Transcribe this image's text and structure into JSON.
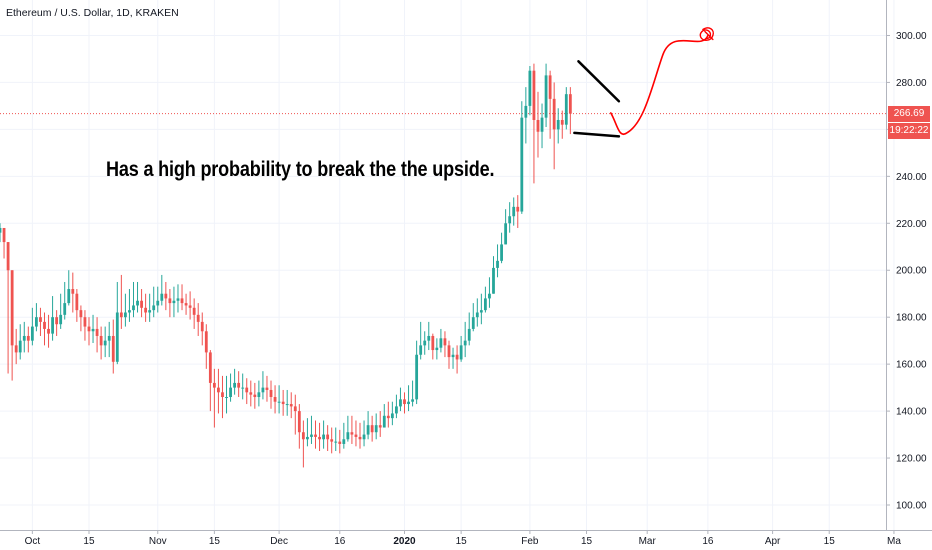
{
  "header": {
    "symbol_title": "Ethereum / U.S. Dollar, 1D, KRAKEN"
  },
  "annotation": {
    "text": "Has a high probability to break the the upside."
  },
  "price_axis": {
    "last_price_label": "266.69",
    "countdown_label": "19:22:22",
    "last_price": 266.69
  },
  "colors": {
    "up": "#26a69a",
    "down": "#ef5350",
    "last_price": "#ef5350",
    "drawing": "#000000",
    "arrow": "#ff0000"
  },
  "chart_data": {
    "type": "candlestick",
    "ylim": [
      100,
      310
    ],
    "yticks": [
      100,
      120,
      140,
      160,
      180,
      200,
      220,
      240,
      260,
      280,
      300
    ],
    "ytick_labels": [
      "100.00",
      "120.00",
      "140.00",
      "160.00",
      "180.00",
      "200.00",
      "220.00",
      "240.00",
      "260.00",
      "280.00",
      "300.00"
    ],
    "x_start": "2019-09-23",
    "xticks": [
      {
        "date": "2019-10-01",
        "label": "Oct"
      },
      {
        "date": "2019-10-15",
        "label": "15"
      },
      {
        "date": "2019-11-01",
        "label": "Nov"
      },
      {
        "date": "2019-11-15",
        "label": "15"
      },
      {
        "date": "2019-12-01",
        "label": "Dec"
      },
      {
        "date": "2019-12-16",
        "label": "16"
      },
      {
        "date": "2020-01-01",
        "label": "2020"
      },
      {
        "date": "2020-01-15",
        "label": "15"
      },
      {
        "date": "2020-02-01",
        "label": "Feb"
      },
      {
        "date": "2020-02-15",
        "label": "15"
      },
      {
        "date": "2020-03-01",
        "label": "Mar"
      },
      {
        "date": "2020-03-16",
        "label": "16"
      },
      {
        "date": "2020-04-01",
        "label": "Apr"
      },
      {
        "date": "2020-04-15",
        "label": "15"
      },
      {
        "date": "2020-05-01",
        "label": "Ma"
      }
    ],
    "closes": [
      218,
      212,
      200,
      168,
      165,
      170,
      172,
      170,
      176,
      180,
      178,
      175,
      173,
      180,
      177,
      181,
      186,
      192,
      190,
      183,
      180,
      176,
      174,
      175,
      172,
      168,
      170,
      172,
      161,
      182,
      180,
      182,
      183,
      185,
      187,
      184,
      182,
      183,
      185,
      187,
      190,
      188,
      186,
      187,
      188,
      186,
      185,
      184,
      181,
      178,
      174,
      165,
      152,
      150,
      148,
      146,
      146,
      150,
      152,
      150,
      150,
      148,
      147,
      146,
      148,
      150,
      149,
      146,
      144,
      144,
      143,
      143,
      142,
      140,
      131,
      128,
      129,
      130,
      129,
      128,
      130,
      128,
      127,
      127,
      126,
      128,
      131,
      130,
      129,
      128,
      130,
      134,
      131,
      134,
      133,
      138,
      137,
      139,
      142,
      145,
      143,
      144,
      145,
      164,
      168,
      170,
      172,
      166,
      167,
      171,
      168,
      163,
      164,
      162,
      168,
      170,
      175,
      180,
      182,
      183,
      188,
      190,
      201,
      204,
      211,
      220,
      223,
      227,
      225,
      265,
      270,
      285,
      264,
      259,
      265,
      283,
      273,
      260,
      264,
      262,
      275,
      266.69
    ],
    "highs": [
      220,
      218,
      210,
      200,
      175,
      177,
      178,
      176,
      184,
      186,
      184,
      182,
      181,
      189,
      183,
      190,
      195,
      200,
      199,
      192,
      185,
      183,
      180,
      181,
      180,
      176,
      176,
      178,
      179,
      195,
      198,
      190,
      192,
      195,
      195,
      192,
      190,
      190,
      193,
      193,
      198,
      195,
      192,
      193,
      194,
      194,
      190,
      191,
      188,
      186,
      182,
      177,
      166,
      158,
      158,
      155,
      155,
      156,
      158,
      157,
      156,
      154,
      153,
      152,
      153,
      157,
      155,
      153,
      151,
      151,
      149,
      149,
      148,
      147,
      143,
      136,
      137,
      138,
      136,
      135,
      136,
      134,
      133,
      133,
      132,
      135,
      138,
      138,
      136,
      135,
      136,
      140,
      138,
      139,
      140,
      143,
      144,
      144,
      147,
      150,
      148,
      151,
      153,
      170,
      178,
      174,
      178,
      173,
      171,
      175,
      174,
      170,
      167,
      168,
      172,
      178,
      182,
      186,
      188,
      190,
      193,
      197,
      206,
      211,
      216,
      226,
      229,
      231,
      232,
      272,
      278,
      287,
      288,
      276,
      271,
      288,
      285,
      280,
      269,
      268,
      278,
      278
    ],
    "lows": [
      212,
      205,
      156,
      153,
      160,
      162,
      165,
      165,
      168,
      174,
      172,
      168,
      167,
      170,
      172,
      175,
      179,
      185,
      182,
      178,
      174,
      170,
      168,
      169,
      165,
      162,
      163,
      163,
      156,
      160,
      175,
      176,
      178,
      180,
      182,
      180,
      178,
      178,
      180,
      182,
      185,
      183,
      180,
      180,
      182,
      183,
      181,
      179,
      175,
      172,
      168,
      158,
      140,
      133,
      139,
      137,
      139,
      144,
      147,
      146,
      145,
      143,
      142,
      141,
      142,
      145,
      144,
      141,
      139,
      139,
      138,
      138,
      137,
      130,
      124,
      116,
      125,
      126,
      124,
      123,
      124,
      123,
      122,
      123,
      122,
      124,
      127,
      126,
      125,
      124,
      125,
      128,
      127,
      128,
      129,
      133,
      133,
      134,
      137,
      140,
      139,
      140,
      142,
      143,
      162,
      164,
      166,
      162,
      162,
      165,
      163,
      158,
      158,
      156,
      161,
      163,
      168,
      174,
      176,
      177,
      182,
      184,
      190,
      197,
      203,
      211,
      216,
      219,
      218,
      224,
      254,
      266,
      237,
      248,
      252,
      261,
      256,
      243,
      254,
      256,
      260,
      258
    ],
    "drawings": {
      "upper_trendline": {
        "from": [
          "2020-02-13",
          289
        ],
        "to": [
          "2020-02-23",
          272
        ]
      },
      "lower_trendline": {
        "from": [
          "2020-02-12",
          258.5
        ],
        "to": [
          "2020-02-23",
          257
        ]
      },
      "projection_arrow": {
        "from": [
          "2020-02-21",
          267
        ],
        "to": [
          "2020-03-16",
          300
        ]
      }
    }
  }
}
